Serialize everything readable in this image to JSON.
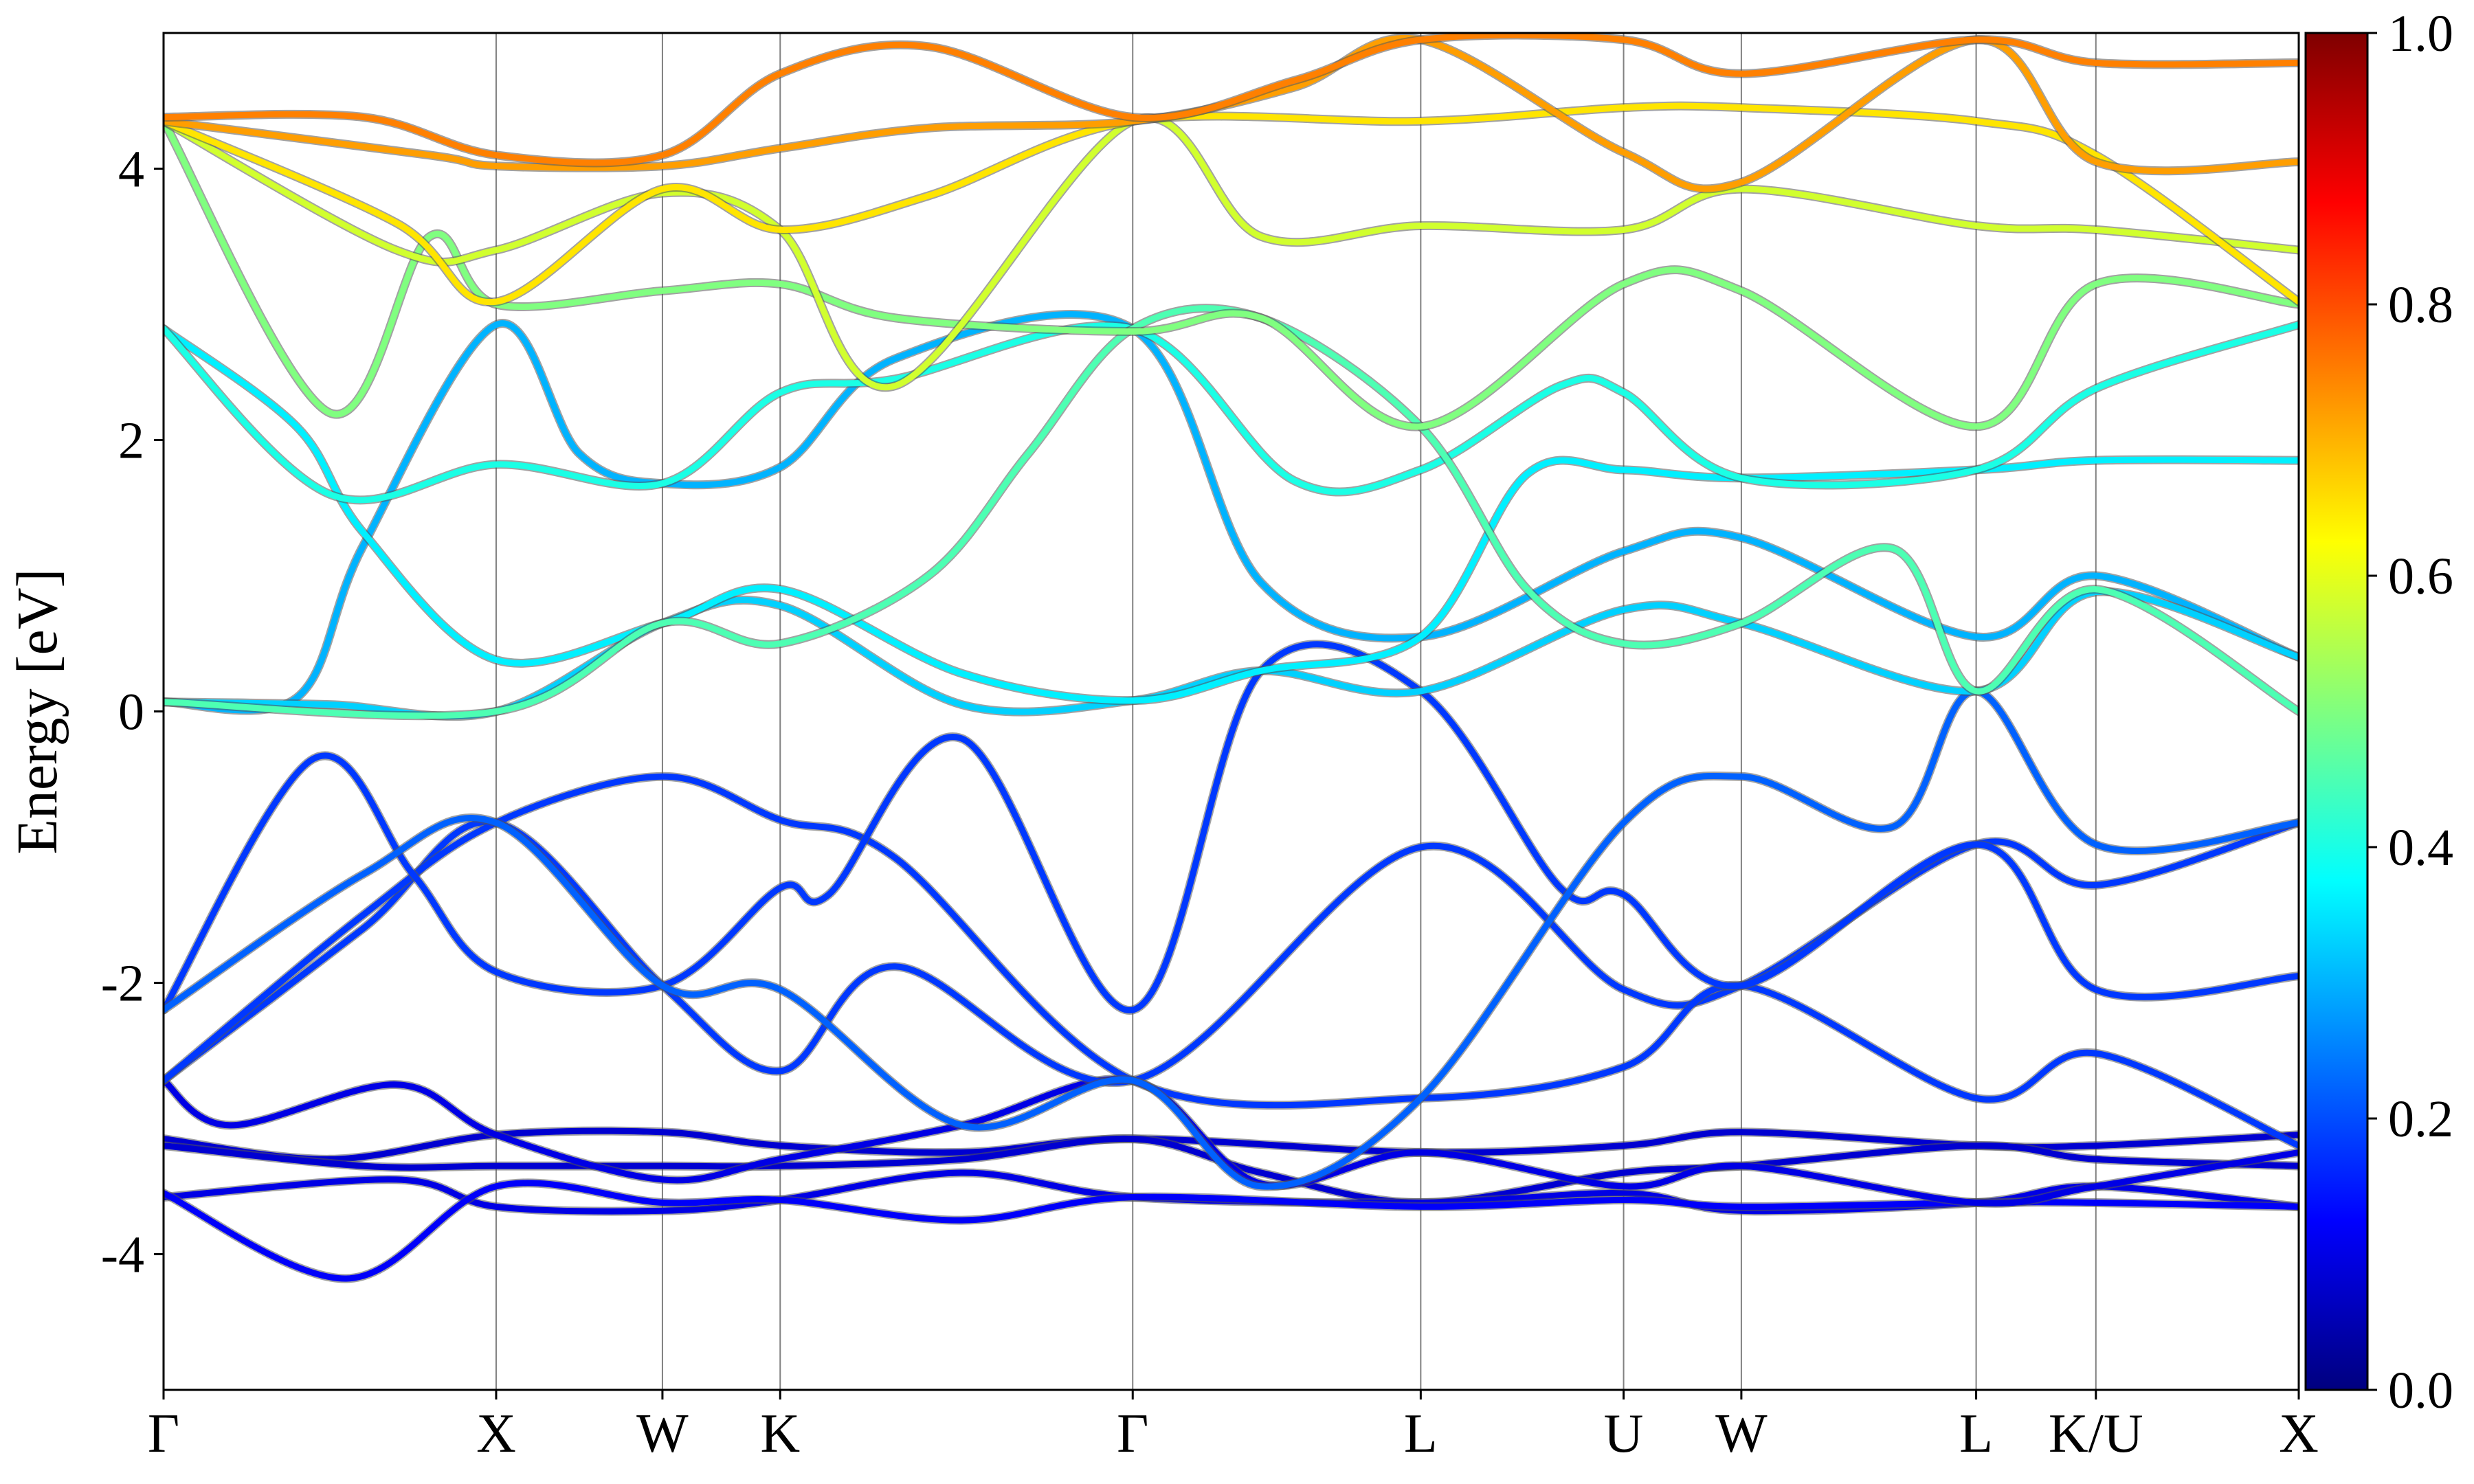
{
  "chart_data": {
    "type": "line",
    "ylabel": "Energy [eV]",
    "ylim": [
      -5,
      5
    ],
    "y_ticks": [
      "4",
      "2",
      "0",
      "-2",
      "-4"
    ],
    "kpath_labels": [
      "Γ",
      "X",
      "W",
      "K",
      "Γ",
      "L",
      "U",
      "W",
      "L",
      "K/U",
      "X"
    ],
    "kpath_positions": [
      0,
      1.0,
      1.5,
      1.854,
      2.914,
      3.78,
      4.39,
      4.744,
      5.45,
      5.81,
      6.42
    ],
    "colorbar": {
      "range": [
        0,
        1
      ],
      "ticks": [
        "0.0",
        "0.2",
        "0.4",
        "0.6",
        "0.8",
        "1.0"
      ],
      "colormap": "jet"
    },
    "series": [
      {
        "color_value": 0.08,
        "points": [
          [
            0,
            -3.15
          ],
          [
            0.5,
            -3.3
          ],
          [
            1.0,
            -3.12
          ],
          [
            1.5,
            -3.1
          ],
          [
            1.854,
            -3.2
          ],
          [
            2.4,
            -3.25
          ],
          [
            2.914,
            -3.15
          ],
          [
            3.78,
            -3.25
          ],
          [
            4.39,
            -3.2
          ],
          [
            4.744,
            -3.1
          ],
          [
            5.45,
            -3.2
          ],
          [
            5.81,
            -3.2
          ],
          [
            6.42,
            -3.12
          ]
        ]
      },
      {
        "color_value": 0.08,
        "points": [
          [
            0,
            -3.2
          ],
          [
            0.6,
            -3.35
          ],
          [
            1.0,
            -3.35
          ],
          [
            1.5,
            -3.35
          ],
          [
            1.854,
            -3.35
          ],
          [
            2.4,
            -3.3
          ],
          [
            2.914,
            -3.15
          ],
          [
            3.3,
            -3.4
          ],
          [
            3.78,
            -3.62
          ],
          [
            4.39,
            -3.4
          ],
          [
            4.744,
            -3.35
          ],
          [
            5.45,
            -3.2
          ],
          [
            5.81,
            -3.3
          ],
          [
            6.42,
            -3.35
          ]
        ]
      },
      {
        "color_value": 0.1,
        "points": [
          [
            0,
            -3.58
          ],
          [
            0.7,
            -3.45
          ],
          [
            1.0,
            -3.65
          ],
          [
            1.5,
            -3.68
          ],
          [
            1.854,
            -3.6
          ],
          [
            2.4,
            -3.4
          ],
          [
            2.914,
            -3.58
          ],
          [
            3.78,
            -3.62
          ],
          [
            4.39,
            -3.55
          ],
          [
            4.744,
            -3.68
          ],
          [
            5.45,
            -3.62
          ],
          [
            5.81,
            -3.5
          ],
          [
            6.42,
            -3.65
          ]
        ]
      },
      {
        "color_value": 0.12,
        "points": [
          [
            0,
            -3.55
          ],
          [
            0.55,
            -4.18
          ],
          [
            1.0,
            -3.5
          ],
          [
            1.5,
            -3.62
          ],
          [
            1.854,
            -3.6
          ],
          [
            2.4,
            -3.75
          ],
          [
            2.914,
            -3.58
          ],
          [
            3.78,
            -3.65
          ],
          [
            4.39,
            -3.6
          ],
          [
            4.744,
            -3.65
          ],
          [
            5.45,
            -3.62
          ],
          [
            5.81,
            -3.62
          ],
          [
            6.42,
            -3.65
          ]
        ]
      },
      {
        "color_value": 0.1,
        "points": [
          [
            0,
            -2.72
          ],
          [
            0.2,
            -3.05
          ],
          [
            0.7,
            -2.75
          ],
          [
            1.0,
            -3.12
          ],
          [
            1.5,
            -3.45
          ],
          [
            1.854,
            -3.3
          ],
          [
            2.4,
            -3.05
          ],
          [
            2.914,
            -2.72
          ],
          [
            3.3,
            -3.48
          ],
          [
            3.78,
            -3.25
          ],
          [
            4.39,
            -3.5
          ],
          [
            4.744,
            -3.35
          ],
          [
            5.45,
            -3.62
          ],
          [
            5.81,
            -3.5
          ],
          [
            6.42,
            -3.25
          ]
        ]
      },
      {
        "color_value": 0.18,
        "points": [
          [
            0,
            -2.72
          ],
          [
            0.6,
            -1.6
          ],
          [
            1.0,
            -0.82
          ],
          [
            1.5,
            -2.02
          ],
          [
            1.854,
            -2.65
          ],
          [
            2.2,
            -1.88
          ],
          [
            2.914,
            -2.72
          ],
          [
            3.78,
            -1.0
          ],
          [
            4.39,
            -2.05
          ],
          [
            4.744,
            -2.02
          ],
          [
            5.45,
            -0.98
          ],
          [
            5.81,
            -1.28
          ],
          [
            6.42,
            -0.82
          ]
        ]
      },
      {
        "color_value": 0.18,
        "points": [
          [
            0,
            -2.72
          ],
          [
            0.6,
            -1.5
          ],
          [
            1.0,
            -0.82
          ],
          [
            1.5,
            -0.48
          ],
          [
            1.854,
            -0.8
          ],
          [
            2.2,
            -1.08
          ],
          [
            2.914,
            -2.72
          ],
          [
            3.78,
            -2.85
          ],
          [
            4.39,
            -2.62
          ],
          [
            4.744,
            -2.02
          ],
          [
            5.45,
            -2.85
          ],
          [
            5.81,
            -2.52
          ],
          [
            6.42,
            -3.2
          ]
        ]
      },
      {
        "color_value": 0.18,
        "points": [
          [
            0,
            -2.2
          ],
          [
            0.45,
            -0.35
          ],
          [
            0.75,
            -1.2
          ],
          [
            1.0,
            -1.92
          ],
          [
            1.5,
            -2.02
          ],
          [
            1.854,
            -1.3
          ],
          [
            2.0,
            -1.35
          ],
          [
            2.4,
            -0.2
          ],
          [
            2.914,
            -2.2
          ],
          [
            3.3,
            0.3
          ],
          [
            3.78,
            0.15
          ],
          [
            4.2,
            -1.3
          ],
          [
            4.39,
            -1.35
          ],
          [
            4.744,
            -2.02
          ],
          [
            5.45,
            -0.98
          ],
          [
            5.81,
            -2.05
          ],
          [
            6.42,
            -1.95
          ]
        ]
      },
      {
        "color_value": 0.22,
        "points": [
          [
            0,
            -2.2
          ],
          [
            0.6,
            -1.2
          ],
          [
            1.0,
            -0.82
          ],
          [
            1.5,
            -2.02
          ],
          [
            1.854,
            -2.05
          ],
          [
            2.4,
            -3.05
          ],
          [
            2.914,
            -2.72
          ],
          [
            3.3,
            -3.5
          ],
          [
            3.78,
            -2.85
          ],
          [
            4.39,
            -0.82
          ],
          [
            4.744,
            -0.48
          ],
          [
            5.2,
            -0.85
          ],
          [
            5.45,
            0.15
          ],
          [
            5.81,
            -0.98
          ],
          [
            6.42,
            -0.82
          ]
        ]
      },
      {
        "color_value": 0.3,
        "points": [
          [
            0,
            0.07
          ],
          [
            0.4,
            0.1
          ],
          [
            0.6,
            1.22
          ],
          [
            1.0,
            2.85
          ],
          [
            1.25,
            1.9
          ],
          [
            1.5,
            1.68
          ],
          [
            1.854,
            1.8
          ],
          [
            2.2,
            2.6
          ],
          [
            2.914,
            2.82
          ],
          [
            3.3,
            0.95
          ],
          [
            3.78,
            0.55
          ],
          [
            4.39,
            1.18
          ],
          [
            4.744,
            1.28
          ],
          [
            5.45,
            0.55
          ],
          [
            5.81,
            1.0
          ],
          [
            6.42,
            0.4
          ]
        ]
      },
      {
        "color_value": 0.33,
        "points": [
          [
            0,
            0.07
          ],
          [
            0.5,
            0.05
          ],
          [
            1.0,
            0.0
          ],
          [
            1.5,
            0.65
          ],
          [
            1.854,
            0.78
          ],
          [
            2.4,
            0.05
          ],
          [
            2.914,
            0.08
          ],
          [
            3.3,
            0.3
          ],
          [
            3.78,
            0.15
          ],
          [
            4.39,
            0.75
          ],
          [
            4.744,
            0.65
          ],
          [
            5.45,
            0.15
          ],
          [
            5.81,
            0.88
          ],
          [
            6.42,
            0.4
          ]
        ]
      },
      {
        "color_value": 0.36,
        "points": [
          [
            0,
            2.82
          ],
          [
            0.4,
            2.1
          ],
          [
            0.6,
            1.32
          ],
          [
            1.0,
            0.38
          ],
          [
            1.5,
            0.65
          ],
          [
            1.854,
            0.9
          ],
          [
            2.4,
            0.28
          ],
          [
            2.914,
            0.08
          ],
          [
            3.3,
            0.3
          ],
          [
            3.78,
            0.55
          ],
          [
            4.1,
            1.75
          ],
          [
            4.39,
            1.78
          ],
          [
            4.744,
            1.72
          ],
          [
            5.45,
            1.78
          ],
          [
            5.81,
            1.85
          ],
          [
            6.42,
            1.85
          ]
        ]
      },
      {
        "color_value": 0.4,
        "points": [
          [
            0,
            2.82
          ],
          [
            0.5,
            1.6
          ],
          [
            1.0,
            1.82
          ],
          [
            1.5,
            1.68
          ],
          [
            1.854,
            2.35
          ],
          [
            2.2,
            2.45
          ],
          [
            2.914,
            2.82
          ],
          [
            3.4,
            1.7
          ],
          [
            3.78,
            1.78
          ],
          [
            4.2,
            2.4
          ],
          [
            4.39,
            2.35
          ],
          [
            4.744,
            1.72
          ],
          [
            5.45,
            1.78
          ],
          [
            5.81,
            2.38
          ],
          [
            6.42,
            2.85
          ]
        ]
      },
      {
        "color_value": 0.45,
        "points": [
          [
            0,
            0.07
          ],
          [
            1.0,
            0.0
          ],
          [
            1.5,
            0.65
          ],
          [
            1.854,
            0.5
          ],
          [
            2.3,
            1.0
          ],
          [
            2.6,
            1.9
          ],
          [
            2.914,
            2.82
          ],
          [
            3.3,
            2.9
          ],
          [
            3.78,
            2.1
          ],
          [
            4.1,
            0.9
          ],
          [
            4.39,
            0.5
          ],
          [
            4.744,
            0.65
          ],
          [
            5.2,
            1.2
          ],
          [
            5.45,
            0.15
          ],
          [
            5.81,
            0.9
          ],
          [
            6.42,
            0.0
          ]
        ]
      },
      {
        "color_value": 0.5,
        "points": [
          [
            0,
            4.35
          ],
          [
            0.5,
            2.2
          ],
          [
            0.8,
            3.5
          ],
          [
            1.0,
            3.0
          ],
          [
            1.5,
            3.1
          ],
          [
            1.854,
            3.15
          ],
          [
            2.2,
            2.9
          ],
          [
            2.914,
            2.8
          ],
          [
            3.3,
            2.9
          ],
          [
            3.78,
            2.1
          ],
          [
            4.39,
            3.15
          ],
          [
            4.744,
            3.1
          ],
          [
            5.45,
            2.1
          ],
          [
            5.81,
            3.15
          ],
          [
            6.42,
            3.0
          ]
        ]
      },
      {
        "color_value": 0.58,
        "points": [
          [
            0,
            4.35
          ],
          [
            0.7,
            3.4
          ],
          [
            1.0,
            3.4
          ],
          [
            1.5,
            3.82
          ],
          [
            1.854,
            3.55
          ],
          [
            2.2,
            2.4
          ],
          [
            2.914,
            4.35
          ],
          [
            3.3,
            3.5
          ],
          [
            3.78,
            3.58
          ],
          [
            4.39,
            3.55
          ],
          [
            4.744,
            3.85
          ],
          [
            5.45,
            3.58
          ],
          [
            5.81,
            3.55
          ],
          [
            6.42,
            3.4
          ]
        ]
      },
      {
        "color_value": 0.65,
        "points": [
          [
            0,
            4.35
          ],
          [
            0.7,
            3.6
          ],
          [
            1.0,
            3.02
          ],
          [
            1.5,
            3.85
          ],
          [
            1.854,
            3.55
          ],
          [
            2.3,
            3.8
          ],
          [
            2.914,
            4.35
          ],
          [
            3.78,
            4.35
          ],
          [
            4.39,
            4.45
          ],
          [
            4.744,
            4.45
          ],
          [
            5.45,
            4.35
          ],
          [
            5.81,
            4.1
          ],
          [
            6.42,
            3.02
          ]
        ]
      },
      {
        "color_value": 0.72,
        "points": [
          [
            0,
            4.35
          ],
          [
            0.8,
            4.1
          ],
          [
            1.0,
            4.02
          ],
          [
            1.5,
            4.02
          ],
          [
            1.854,
            4.15
          ],
          [
            2.3,
            4.3
          ],
          [
            2.914,
            4.35
          ],
          [
            3.4,
            4.6
          ],
          [
            3.78,
            4.95
          ],
          [
            4.39,
            4.12
          ],
          [
            4.744,
            3.9
          ],
          [
            5.45,
            4.95
          ],
          [
            5.81,
            4.05
          ],
          [
            6.42,
            4.05
          ]
        ]
      },
      {
        "color_value": 0.75,
        "points": [
          [
            0,
            4.38
          ],
          [
            0.6,
            4.38
          ],
          [
            1.0,
            4.1
          ],
          [
            1.5,
            4.1
          ],
          [
            1.854,
            4.7
          ],
          [
            2.3,
            4.9
          ],
          [
            2.914,
            4.38
          ],
          [
            3.4,
            4.65
          ],
          [
            3.78,
            4.95
          ],
          [
            4.39,
            4.95
          ],
          [
            4.744,
            4.7
          ],
          [
            5.45,
            4.95
          ],
          [
            5.81,
            4.78
          ],
          [
            6.42,
            4.78
          ]
        ]
      }
    ]
  }
}
